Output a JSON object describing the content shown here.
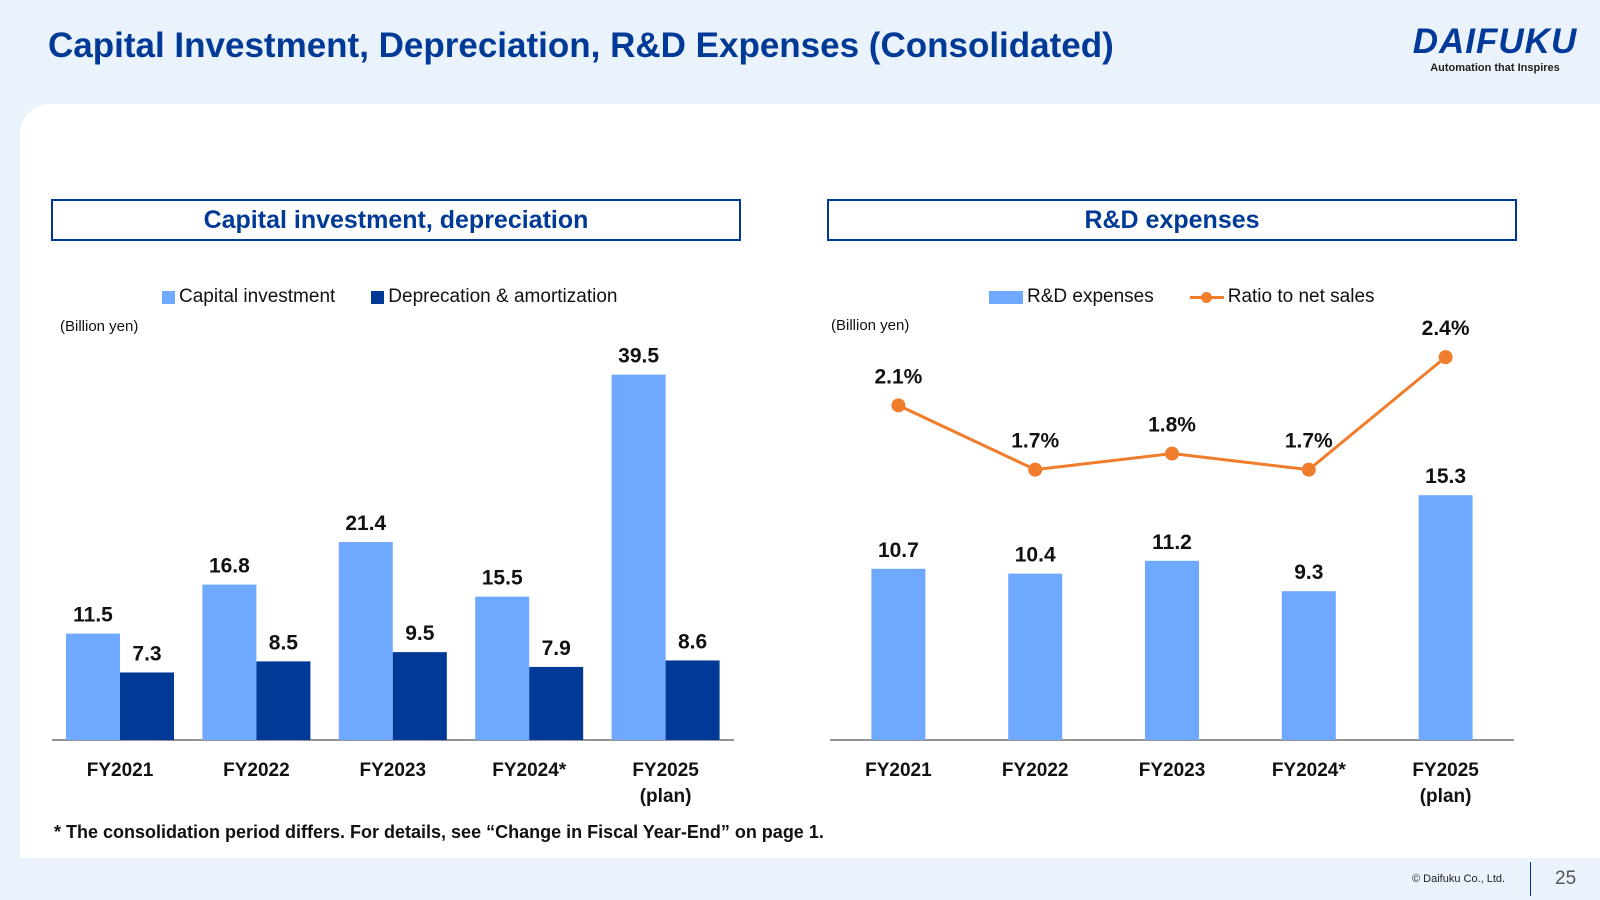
{
  "page": {
    "title": "Capital Investment, Depreciation, R&D Expenses (Consolidated)",
    "footnote": "* The consolidation period differs. For details, see “Change in Fiscal Year-End” on page 1.",
    "copyright": "© Daifuku Co., Ltd.",
    "page_number": "25"
  },
  "logo": {
    "name": "DAIFUKU",
    "tagline": "Automation that Inspires",
    "color": "#00399a"
  },
  "colors": {
    "title": "#003a96",
    "light_bar": "#6fa8ff",
    "dark_bar": "#003a96",
    "line": "#ef7d2c"
  },
  "chart_data": [
    {
      "type": "bar",
      "title": "Capital investment, depreciation",
      "unit_label": "(Billion yen)",
      "categories": [
        "FY2021",
        "FY2022",
        "FY2023",
        "FY2024*",
        "FY2025\n(plan)"
      ],
      "series": [
        {
          "name": "Capital investment",
          "values": [
            11.5,
            16.8,
            21.4,
            15.5,
            39.5
          ],
          "labels": [
            "11.5",
            "16.8",
            "21.4",
            "15.5",
            "39.5"
          ],
          "color": "#6fa8ff"
        },
        {
          "name": "Deprecation & amortization",
          "values": [
            7.3,
            8.5,
            9.5,
            7.9,
            8.6
          ],
          "labels": [
            "7.3",
            "8.5",
            "9.5",
            "7.9",
            "8.6"
          ],
          "color": "#003a96"
        }
      ],
      "ylim": [
        0,
        40
      ],
      "xlabel": "",
      "ylabel": "",
      "legend": "top-center"
    },
    {
      "type": "bar+line",
      "title": "R&D expenses",
      "unit_label": "(Billion yen)",
      "categories": [
        "FY2021",
        "FY2022",
        "FY2023",
        "FY2024*",
        "FY2025\n(plan)"
      ],
      "series": [
        {
          "name": "R&D expenses",
          "type": "bar",
          "values": [
            10.7,
            10.4,
            11.2,
            9.3,
            15.3
          ],
          "labels": [
            "10.7",
            "10.4",
            "11.2",
            "9.3",
            "15.3"
          ],
          "color": "#6fa8ff"
        },
        {
          "name": "Ratio to net sales",
          "type": "line",
          "values": [
            2.1,
            1.7,
            1.8,
            1.7,
            2.4
          ],
          "labels": [
            "2.1%",
            "1.7%",
            "1.8%",
            "1.7%",
            "2.4%"
          ],
          "color": "#ef7d2c"
        }
      ],
      "ylim": [
        0,
        20
      ],
      "y2lim": [
        0,
        2.6
      ],
      "legend": "top-center"
    }
  ]
}
